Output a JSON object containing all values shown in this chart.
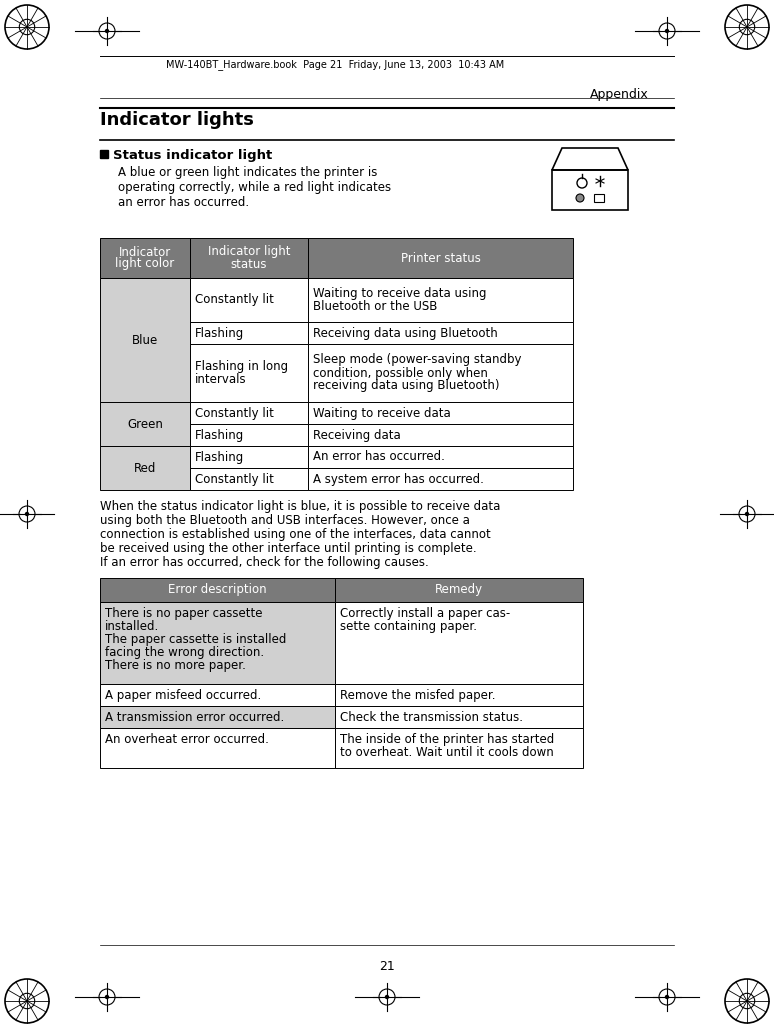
{
  "page_header": "MW-140BT_Hardware.book  Page 21  Friday, June 13, 2003  10:43 AM",
  "section_header": "Appendix",
  "title": "Indicator lights",
  "subtitle": "Status indicator light",
  "intro_text": "A blue or green light indicates the printer is\noperating correctly, while a red light indicates\nan error has occurred.",
  "table1_header": [
    "Indicator\nlight color",
    "Indicator light\nstatus",
    "Printer status"
  ],
  "table1_rows": [
    [
      "Blue",
      "Constantly lit",
      "Waiting to receive data using\nBluetooth or the USB"
    ],
    [
      "Blue",
      "Flashing",
      "Receiving data using Bluetooth"
    ],
    [
      "Blue",
      "Flashing in long\nintervals",
      "Sleep mode (power-saving standby\ncondition, possible only when\nreceiving data using Bluetooth)"
    ],
    [
      "Green",
      "Constantly lit",
      "Waiting to receive data"
    ],
    [
      "Green",
      "Flashing",
      "Receiving data"
    ],
    [
      "Red",
      "Flashing",
      "An error has occurred."
    ],
    [
      "Red",
      "Constantly lit",
      "A system error has occurred."
    ]
  ],
  "middle_text": "When the status indicator light is blue, it is possible to receive data\nusing both the Bluetooth and USB interfaces. However, once a\nconnection is established using one of the interfaces, data cannot\nbe received using the other interface until printing is complete.\nIf an error has occurred, check for the following causes.",
  "table2_header": [
    "Error description",
    "Remedy"
  ],
  "table2_rows": [
    [
      "There is no paper cassette\ninstalled.\nThe paper cassette is installed\nfacing the wrong direction.\nThere is no more paper.",
      "Correctly install a paper cas-\nsette containing paper."
    ],
    [
      "A paper misfeed occurred.",
      "Remove the misfed paper."
    ],
    [
      "A transmission error occurred.",
      "Check the transmission status."
    ],
    [
      "An overheat error occurred.",
      "The inside of the printer has started\nto overheat. Wait until it cools down"
    ]
  ],
  "page_number": "21",
  "header_bg": "#7a7a7a",
  "header_fg": "#ffffff",
  "col0_bg": "#d0d0d0",
  "row_bg_alt": "#e8e8e8",
  "bg_color": "#ffffff",
  "font_size_body": 8.5,
  "font_size_title": 13,
  "font_size_subtitle": 9.5,
  "font_size_table_hdr": 8.5,
  "font_size_small": 7.5,
  "font_size_page_hdr": 7.0
}
